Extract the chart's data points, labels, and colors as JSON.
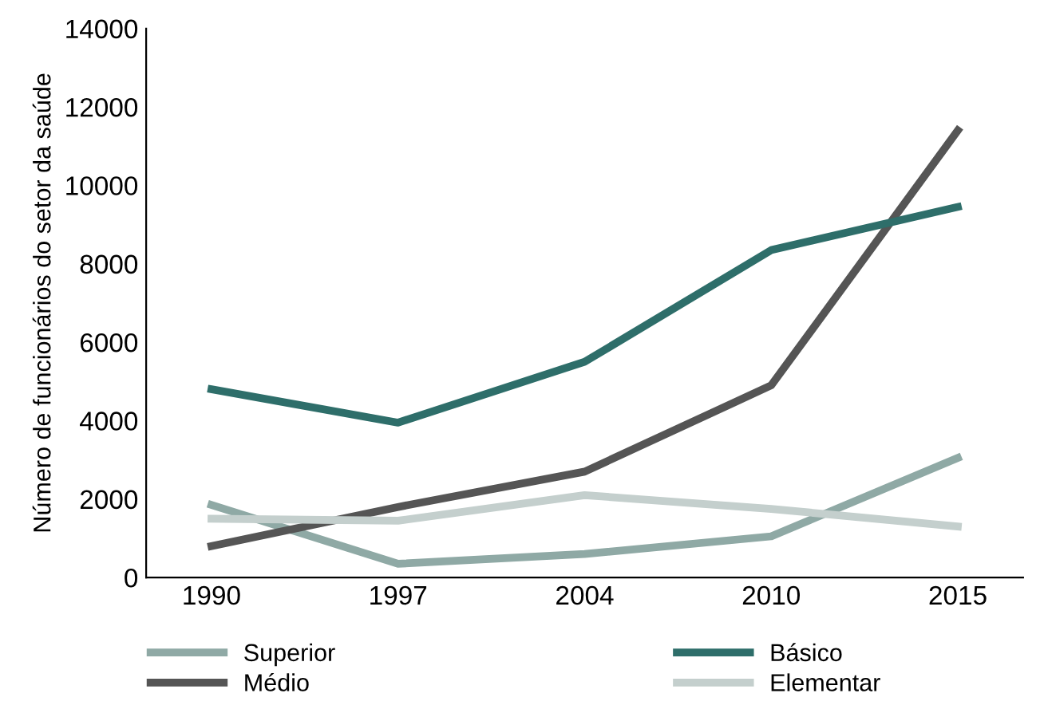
{
  "chart_data": {
    "type": "line",
    "ylabel": "Número de funcionários do setor da saúde",
    "categories": [
      "1990",
      "1997",
      "2004",
      "2010",
      "2015"
    ],
    "series": [
      {
        "name": "Superior",
        "color": "#8fa9a5",
        "values": [
          1850,
          350,
          600,
          1050,
          3050
        ]
      },
      {
        "name": "Médio",
        "color": "#555555",
        "values": [
          800,
          1800,
          2700,
          4900,
          11400
        ]
      },
      {
        "name": "Básico",
        "color": "#2e6e6a",
        "values": [
          4800,
          3950,
          5500,
          8350,
          9450
        ]
      },
      {
        "name": "Elementar",
        "color": "#c4cfcd",
        "values": [
          1500,
          1450,
          2100,
          1750,
          1300
        ]
      }
    ],
    "ylim": [
      0,
      14000
    ],
    "yticks": [
      0,
      2000,
      4000,
      6000,
      8000,
      10000,
      12000,
      14000
    ],
    "grid": false,
    "legend": "bottom",
    "marker": "none",
    "line_style": "solid"
  }
}
